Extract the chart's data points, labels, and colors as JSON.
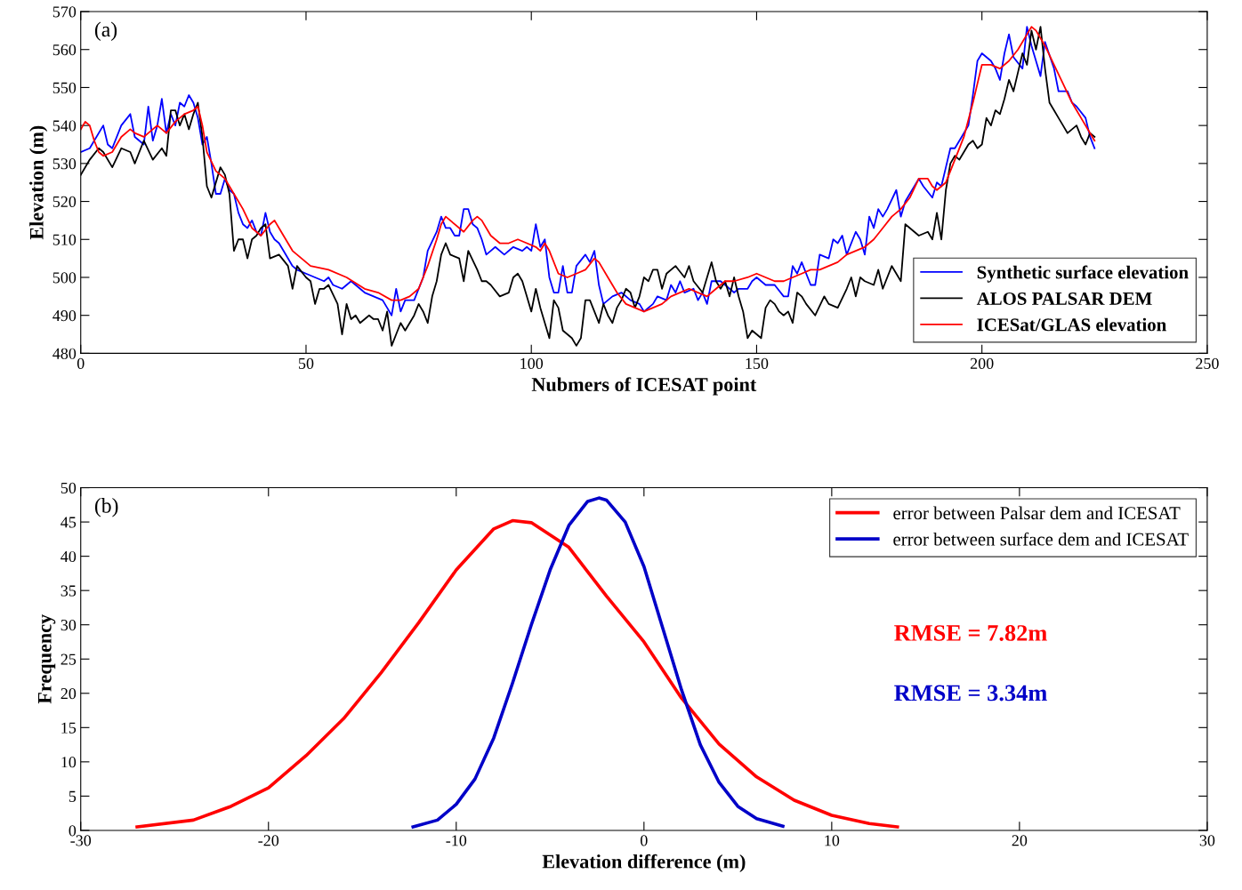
{
  "chart_data": [
    {
      "type": "line",
      "xlabel": "Nubmers of ICESAT point",
      "ylabel": "Elevation (m)",
      "annotations": [
        "(a)"
      ],
      "xlim": [
        0,
        250
      ],
      "xticks": [
        0,
        50,
        100,
        150,
        200,
        250
      ],
      "ylim": [
        480,
        570
      ],
      "yticks": [
        480,
        490,
        500,
        510,
        520,
        530,
        540,
        550,
        560,
        570
      ],
      "grid": false,
      "legend": "bottom right",
      "line_style": "solid",
      "marker": "none",
      "series": [
        {
          "name": "Synthetic surface elevation",
          "color": "#0000ff",
          "x": [
            0,
            2,
            5,
            6,
            7,
            9,
            11,
            12,
            14,
            15,
            16,
            17,
            18,
            19,
            20,
            21,
            22,
            23,
            24,
            25,
            26,
            27,
            28,
            29,
            30,
            31,
            32,
            33,
            34,
            35,
            36,
            37,
            38,
            39,
            40,
            41,
            42,
            43,
            44,
            45,
            47,
            48,
            50,
            52,
            54,
            55,
            56,
            58,
            59,
            60,
            62,
            63,
            65,
            67,
            68,
            69,
            70,
            71,
            72,
            74,
            76,
            77,
            79,
            80,
            81,
            82,
            83,
            84,
            85,
            86,
            87,
            88,
            89,
            90,
            91,
            92,
            94,
            96,
            98,
            99,
            100,
            101,
            102,
            103,
            104,
            105,
            106,
            107,
            108,
            109,
            110,
            112,
            113,
            114,
            115,
            116,
            118,
            120,
            122,
            124,
            125,
            127,
            128,
            130,
            131,
            132,
            133,
            134,
            136,
            137,
            138,
            139,
            140,
            142,
            143,
            145,
            146,
            148,
            149,
            150,
            152,
            154,
            156,
            157,
            158,
            159,
            160,
            162,
            163,
            164,
            166,
            167,
            168,
            169,
            170,
            172,
            173,
            174,
            175,
            176,
            177,
            178,
            179,
            181,
            182,
            183,
            186,
            187,
            189,
            190,
            191,
            192,
            193,
            194,
            196,
            197,
            198,
            199,
            200,
            202,
            203,
            204,
            205,
            206,
            207,
            209,
            210,
            211,
            212,
            213,
            214,
            216,
            217,
            219,
            220,
            221,
            223,
            224,
            225
          ],
          "values": [
            533,
            534,
            540,
            535,
            534,
            540,
            543,
            537,
            535,
            545,
            536,
            540,
            547,
            538,
            543,
            540,
            546,
            545,
            548,
            546,
            542,
            535,
            537,
            530,
            522,
            522,
            526,
            523,
            522,
            517,
            514,
            513,
            515,
            512,
            511,
            517,
            512,
            510,
            509,
            507,
            503,
            502,
            501,
            500,
            499,
            500,
            498,
            497,
            498,
            499,
            497,
            496,
            495,
            494,
            492,
            490,
            497,
            491,
            494,
            494,
            500,
            507,
            512,
            516,
            513,
            513,
            511,
            511,
            518,
            518,
            514,
            513,
            510,
            506,
            507,
            508,
            506,
            508,
            507,
            508,
            507,
            514,
            508,
            510,
            500,
            496,
            496,
            503,
            496,
            496,
            503,
            506,
            504,
            507,
            498,
            493,
            495,
            496,
            494,
            493,
            491,
            493,
            495,
            494,
            498,
            496,
            499,
            496,
            497,
            494,
            496,
            493,
            499,
            499,
            498,
            496,
            497,
            497,
            499,
            500,
            498,
            498,
            495,
            495,
            503,
            501,
            504,
            498,
            498,
            506,
            505,
            510,
            509,
            511,
            506,
            512,
            510,
            506,
            516,
            513,
            518,
            516,
            518,
            523,
            516,
            520,
            526,
            524,
            521,
            525,
            524,
            529,
            534,
            534,
            538,
            540,
            548,
            557,
            559,
            557,
            555,
            552,
            559,
            564,
            558,
            555,
            566,
            561,
            557,
            553,
            562,
            555,
            549,
            549,
            546,
            545,
            542,
            537,
            534
          ]
        },
        {
          "name": "ALOS PALSAR DEM",
          "color": "#000000",
          "x": [
            0,
            2,
            4,
            5,
            7,
            9,
            11,
            12,
            14,
            16,
            18,
            19,
            20,
            21,
            22,
            23,
            24,
            25,
            26,
            27,
            28,
            29,
            31,
            32,
            33,
            34,
            35,
            36,
            37,
            38,
            39,
            40,
            41,
            42,
            44,
            46,
            47,
            48,
            50,
            51,
            52,
            53,
            54,
            55,
            57,
            58,
            59,
            60,
            61,
            62,
            64,
            65,
            66,
            67,
            68,
            69,
            70,
            71,
            72,
            74,
            75,
            76,
            77,
            78,
            79,
            80,
            81,
            82,
            84,
            85,
            86,
            88,
            89,
            90,
            91,
            93,
            95,
            96,
            97,
            98,
            99,
            100,
            101,
            102,
            104,
            105,
            106,
            107,
            108,
            109,
            110,
            111,
            112,
            113,
            114,
            115,
            116,
            117,
            118,
            119,
            120,
            121,
            122,
            123,
            124,
            125,
            126,
            127,
            128,
            129,
            130,
            132,
            134,
            135,
            136,
            138,
            140,
            141,
            142,
            143,
            144,
            145,
            146,
            147,
            148,
            149,
            150,
            151,
            152,
            153,
            154,
            155,
            156,
            157,
            158,
            159,
            160,
            161,
            163,
            165,
            166,
            168,
            170,
            171,
            172,
            173,
            174,
            176,
            177,
            178,
            180,
            181,
            182,
            183,
            184,
            186,
            188,
            189,
            190,
            191,
            192,
            193,
            194,
            195,
            197,
            198,
            199,
            200,
            201,
            202,
            203,
            204,
            205,
            206,
            207,
            208,
            209,
            210,
            211,
            212,
            213,
            214,
            215,
            216,
            217,
            218,
            219,
            221,
            222,
            223,
            224,
            225
          ],
          "values": [
            527,
            531,
            534,
            533,
            529,
            534,
            533,
            530,
            536,
            531,
            534,
            532,
            544,
            544,
            540,
            543,
            539,
            543,
            546,
            537,
            524,
            521,
            529,
            527,
            522,
            507,
            510,
            510,
            505,
            510,
            511,
            513,
            514,
            505,
            506,
            503,
            497,
            503,
            500,
            499,
            493,
            497,
            497,
            498,
            493,
            485,
            493,
            489,
            490,
            488,
            490,
            489,
            489,
            486,
            491,
            482,
            485,
            488,
            486,
            490,
            493,
            491,
            488,
            495,
            499,
            506,
            509,
            506,
            505,
            499,
            507,
            502,
            499,
            499,
            498,
            495,
            496,
            500,
            501,
            499,
            495,
            491,
            497,
            492,
            484,
            494,
            492,
            486,
            485,
            484,
            482,
            484,
            494,
            494,
            491,
            488,
            493,
            490,
            488,
            492,
            494,
            497,
            496,
            492,
            495,
            500,
            499,
            502,
            502,
            497,
            501,
            503,
            500,
            503,
            499,
            496,
            504,
            499,
            497,
            499,
            495,
            500,
            495,
            491,
            484,
            486,
            485,
            484,
            492,
            494,
            493,
            491,
            490,
            491,
            488,
            496,
            495,
            493,
            490,
            495,
            493,
            492,
            497,
            500,
            495,
            500,
            499,
            498,
            502,
            497,
            503,
            501,
            499,
            514,
            513,
            511,
            512,
            510,
            517,
            510,
            523,
            530,
            532,
            531,
            535,
            536,
            534,
            535,
            542,
            540,
            544,
            543,
            547,
            552,
            549,
            554,
            559,
            556,
            565,
            560,
            566,
            555,
            546,
            544,
            542,
            540,
            538,
            540,
            537,
            535,
            538,
            537
          ]
        },
        {
          "name": "ICESat/GLAS elevation",
          "color": "#ff0000",
          "x": [
            0,
            1,
            2,
            3,
            4,
            5,
            7,
            9,
            11,
            12,
            14,
            15,
            17,
            19,
            21,
            23,
            25,
            26,
            27,
            28,
            30,
            32,
            34,
            36,
            38,
            40,
            42,
            43,
            45,
            47,
            49,
            51,
            55,
            59,
            63,
            66,
            69,
            71,
            73,
            75,
            77,
            79,
            80,
            81,
            82,
            84,
            85,
            87,
            88,
            89,
            91,
            93,
            95,
            97,
            99,
            101,
            102,
            103,
            104,
            106,
            108,
            110,
            112,
            114,
            115,
            117,
            119,
            121,
            123,
            125,
            127,
            129,
            131,
            133,
            135,
            137,
            139,
            141,
            143,
            145,
            148,
            150,
            152,
            154,
            156,
            158,
            160,
            162,
            164,
            166,
            168,
            170,
            172,
            174,
            176,
            178,
            180,
            182,
            184,
            186,
            188,
            189,
            190,
            192,
            194,
            196,
            198,
            199,
            200,
            202,
            204,
            206,
            208,
            210,
            211,
            212,
            214,
            216,
            218,
            220,
            222,
            224,
            225
          ],
          "values": [
            539,
            541,
            540,
            536,
            533,
            532,
            533,
            537,
            539,
            538,
            537,
            538,
            540,
            538,
            541,
            543,
            544,
            545,
            540,
            533,
            528,
            526,
            522,
            518,
            513,
            511,
            514,
            515,
            511,
            507,
            505,
            503,
            502,
            500,
            497,
            496,
            494,
            494,
            495,
            497,
            503,
            510,
            514,
            516,
            515,
            513,
            512,
            515,
            516,
            515,
            511,
            509,
            509,
            510,
            509,
            508,
            507,
            509,
            507,
            501,
            500,
            501,
            502,
            505,
            504,
            500,
            496,
            493,
            492,
            491,
            492,
            493,
            495,
            496,
            497,
            496,
            495,
            497,
            499,
            499,
            500,
            501,
            500,
            499,
            499,
            500,
            501,
            502,
            502,
            503,
            504,
            506,
            507,
            508,
            510,
            513,
            516,
            518,
            521,
            526,
            526,
            524,
            523,
            525,
            531,
            537,
            546,
            551,
            556,
            556,
            555,
            557,
            560,
            564,
            566,
            565,
            561,
            556,
            551,
            546,
            542,
            538,
            536
          ]
        }
      ]
    },
    {
      "type": "line",
      "xlabel": "Elevation difference (m)",
      "ylabel": "Frequency",
      "annotations": [
        "(b)",
        "RMSE = 7.82m",
        "RMSE = 3.34m"
      ],
      "xlim": [
        -30,
        30
      ],
      "xticks": [
        -30,
        -20,
        -10,
        0,
        10,
        20,
        30
      ],
      "ylim": [
        0,
        50
      ],
      "yticks": [
        0,
        5,
        10,
        15,
        20,
        25,
        30,
        35,
        40,
        45,
        50
      ],
      "grid": false,
      "legend": "top right",
      "line_style": "solid",
      "marker": "none",
      "series": [
        {
          "name": "error between Palsar dem and ICESAT",
          "color": "#ff0000",
          "x": [
            -27,
            -24,
            -22,
            -20,
            -18,
            -16,
            -14,
            -12,
            -10,
            -8,
            -7,
            -6,
            -4,
            -2,
            0,
            2,
            4,
            6,
            8,
            10,
            12,
            13.5
          ],
          "values": [
            0.5,
            1.5,
            3.5,
            6.2,
            10.9,
            16.3,
            23,
            30.3,
            38,
            44,
            45.2,
            44.9,
            41.3,
            34.2,
            27.5,
            19.3,
            12.6,
            7.8,
            4.4,
            2.2,
            1,
            0.5
          ]
        },
        {
          "name": "error between surface dem and ICESAT",
          "color": "#0000c8",
          "x": [
            -12.3,
            -11,
            -10,
            -9,
            -8,
            -7,
            -6,
            -5,
            -4,
            -3,
            -2.4,
            -2,
            -1,
            0,
            1,
            2,
            3,
            4,
            5,
            6,
            7.4
          ],
          "values": [
            0.5,
            1.5,
            3.8,
            7.5,
            13.5,
            21.5,
            30,
            38,
            44.5,
            48,
            48.5,
            48.2,
            45,
            38.5,
            29.5,
            20.5,
            12.5,
            7,
            3.5,
            1.7,
            0.6
          ]
        }
      ]
    }
  ]
}
